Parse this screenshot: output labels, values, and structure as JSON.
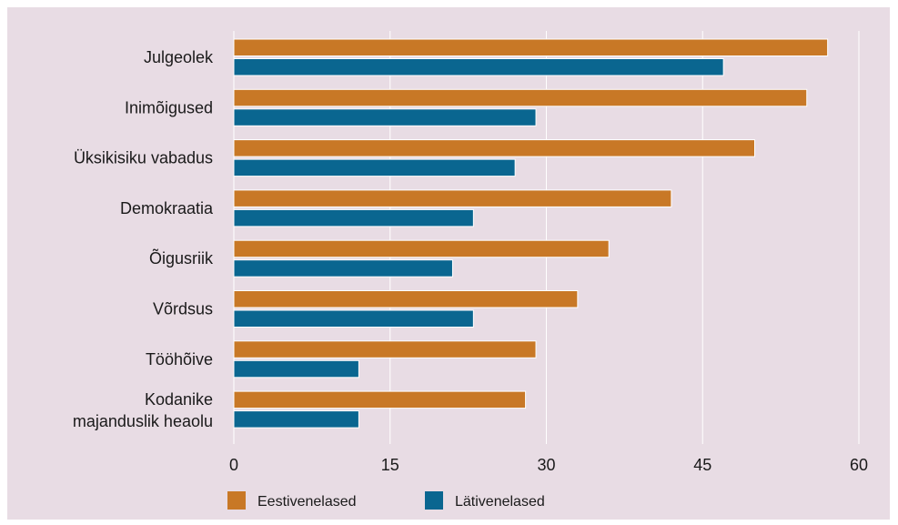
{
  "colors": {
    "background": "#e8dce4",
    "eestivenelased": "#c87826",
    "lativenelased": "#0a6690",
    "grid": "#ffffff"
  },
  "chart_data": {
    "type": "bar",
    "orientation": "horizontal",
    "categories": [
      [
        "Julgeolek"
      ],
      [
        "Inimõigused"
      ],
      [
        "Üksikisiku vabadus"
      ],
      [
        "Demokraatia"
      ],
      [
        "Õigusriik"
      ],
      [
        "Võrdsus"
      ],
      [
        "Tööhõive"
      ],
      [
        "Kodanike",
        "majanduslik heaolu"
      ]
    ],
    "series": [
      {
        "name": "Eestivenelased",
        "values": [
          57,
          55,
          50,
          42,
          36,
          33,
          29,
          28
        ]
      },
      {
        "name": "Lätivenelased",
        "values": [
          47,
          29,
          27,
          23,
          21,
          23,
          12,
          12
        ]
      }
    ],
    "xlim": [
      0,
      60
    ],
    "xticks": [
      "0",
      "15",
      "30",
      "45",
      "60"
    ],
    "grid": true,
    "legend_position": "bottom-left"
  }
}
